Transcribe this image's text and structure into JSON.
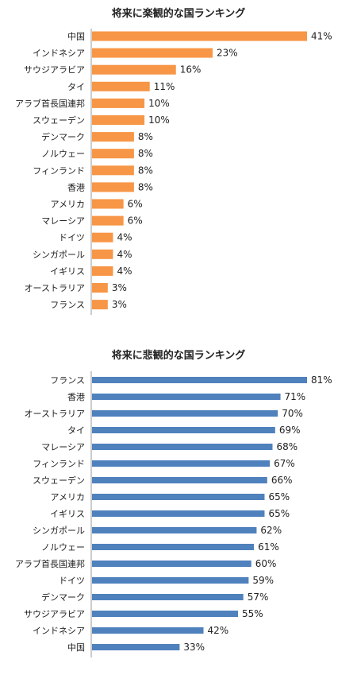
{
  "chart_data": [
    {
      "type": "bar",
      "orientation": "horizontal",
      "title": "将来に楽観的な国ランキング",
      "categories": [
        "中国",
        "インドネシア",
        "サウジアラビア",
        "タイ",
        "アラブ首長国連邦",
        "スウェーデン",
        "デンマーク",
        "ノルウェー",
        "フィンランド",
        "香港",
        "アメリカ",
        "マレーシア",
        "ドイツ",
        "シンガポール",
        "イギリス",
        "オーストラリア",
        "フランス"
      ],
      "values": [
        41,
        23,
        16,
        11,
        10,
        10,
        8,
        8,
        8,
        8,
        6,
        6,
        4,
        4,
        4,
        3,
        3
      ],
      "value_labels": [
        "41%",
        "23%",
        "16%",
        "11%",
        "10%",
        "10%",
        "8%",
        "8%",
        "8%",
        "8%",
        "6%",
        "6%",
        "4%",
        "4%",
        "4%",
        "3%",
        "3%"
      ],
      "color": "#F79646",
      "xlim": [
        0,
        41
      ],
      "grid": false
    },
    {
      "type": "bar",
      "orientation": "horizontal",
      "title": "将来に悲観的な国ランキング",
      "categories": [
        "フランス",
        "香港",
        "オーストラリア",
        "タイ",
        "マレーシア",
        "フィンランド",
        "スウェーデン",
        "アメリカ",
        "イギリス",
        "シンガポール",
        "ノルウェー",
        "アラブ首長国連邦",
        "ドイツ",
        "デンマーク",
        "サウジアラビア",
        "インドネシア",
        "中国"
      ],
      "values": [
        81,
        71,
        70,
        69,
        68,
        67,
        66,
        65,
        65,
        62,
        61,
        60,
        59,
        57,
        55,
        42,
        33
      ],
      "value_labels": [
        "81%",
        "71%",
        "70%",
        "69%",
        "68%",
        "67%",
        "66%",
        "65%",
        "65%",
        "62%",
        "61%",
        "60%",
        "59%",
        "57%",
        "55%",
        "42%",
        "33%"
      ],
      "color": "#4F81BD",
      "xlim": [
        0,
        81
      ],
      "grid": false
    }
  ]
}
